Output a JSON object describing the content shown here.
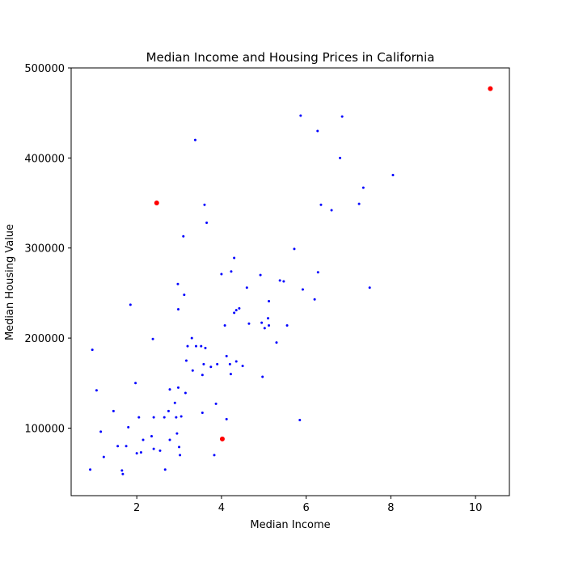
{
  "chart_data": {
    "type": "scatter",
    "title": "Median Income and Housing Prices in California",
    "xlabel": "Median Income",
    "ylabel": "Median Housing Value",
    "xlim": [
      0.45,
      10.8
    ],
    "ylim": [
      25000,
      500000
    ],
    "x_ticks": [
      2,
      4,
      6,
      8,
      10
    ],
    "y_ticks": [
      100000,
      200000,
      300000,
      400000,
      500000
    ],
    "grid": false,
    "series": [
      {
        "color": "#0000ff",
        "marker_size": "small",
        "points": [
          [
            0.9,
            54000
          ],
          [
            0.95,
            187000
          ],
          [
            1.05,
            142000
          ],
          [
            1.15,
            96000
          ],
          [
            1.22,
            68000
          ],
          [
            1.45,
            119000
          ],
          [
            1.55,
            80000
          ],
          [
            1.65,
            53000
          ],
          [
            1.67,
            49000
          ],
          [
            1.75,
            80000
          ],
          [
            1.8,
            101000
          ],
          [
            1.85,
            237000
          ],
          [
            1.97,
            150000
          ],
          [
            2.0,
            72000
          ],
          [
            2.05,
            112000
          ],
          [
            2.1,
            73000
          ],
          [
            2.15,
            87000
          ],
          [
            2.35,
            91000
          ],
          [
            2.38,
            199000
          ],
          [
            2.4,
            112000
          ],
          [
            2.4,
            77000
          ],
          [
            2.55,
            75000
          ],
          [
            2.65,
            112000
          ],
          [
            2.67,
            54000
          ],
          [
            2.75,
            119000
          ],
          [
            2.78,
            143000
          ],
          [
            2.78,
            87000
          ],
          [
            2.9,
            128000
          ],
          [
            2.93,
            112000
          ],
          [
            2.95,
            94000
          ],
          [
            2.97,
            260000
          ],
          [
            2.98,
            232000
          ],
          [
            2.98,
            145000
          ],
          [
            3.0,
            79000
          ],
          [
            3.02,
            70000
          ],
          [
            3.05,
            113000
          ],
          [
            3.1,
            313000
          ],
          [
            3.12,
            248000
          ],
          [
            3.15,
            139000
          ],
          [
            3.17,
            175000
          ],
          [
            3.2,
            191000
          ],
          [
            3.3,
            200000
          ],
          [
            3.32,
            164000
          ],
          [
            3.38,
            420000
          ],
          [
            3.4,
            191000
          ],
          [
            3.52,
            191000
          ],
          [
            3.55,
            159000
          ],
          [
            3.55,
            117000
          ],
          [
            3.58,
            171000
          ],
          [
            3.6,
            348000
          ],
          [
            3.62,
            189000
          ],
          [
            3.65,
            328000
          ],
          [
            3.75,
            168000
          ],
          [
            3.83,
            70000
          ],
          [
            3.87,
            127000
          ],
          [
            3.9,
            171000
          ],
          [
            4.0,
            271000
          ],
          [
            4.08,
            214000
          ],
          [
            4.12,
            110000
          ],
          [
            4.12,
            180000
          ],
          [
            4.2,
            171000
          ],
          [
            4.22,
            160000
          ],
          [
            4.23,
            274000
          ],
          [
            4.3,
            289000
          ],
          [
            4.3,
            228000
          ],
          [
            4.35,
            231000
          ],
          [
            4.35,
            174000
          ],
          [
            4.42,
            233000
          ],
          [
            4.5,
            169000
          ],
          [
            4.6,
            256000
          ],
          [
            4.65,
            216000
          ],
          [
            4.92,
            270000
          ],
          [
            4.95,
            217000
          ],
          [
            4.97,
            157000
          ],
          [
            5.02,
            211000
          ],
          [
            5.1,
            222000
          ],
          [
            5.12,
            214000
          ],
          [
            5.12,
            241000
          ],
          [
            5.3,
            195000
          ],
          [
            5.38,
            264000
          ],
          [
            5.47,
            263000
          ],
          [
            5.55,
            214000
          ],
          [
            5.72,
            299000
          ],
          [
            5.85,
            109000
          ],
          [
            5.87,
            447000
          ],
          [
            5.92,
            254000
          ],
          [
            6.2,
            243000
          ],
          [
            6.27,
            430000
          ],
          [
            6.28,
            273000
          ],
          [
            6.35,
            348000
          ],
          [
            6.6,
            342000
          ],
          [
            6.8,
            400000
          ],
          [
            6.85,
            446000
          ],
          [
            7.25,
            349000
          ],
          [
            7.35,
            367000
          ],
          [
            7.5,
            256000
          ],
          [
            8.05,
            381000
          ]
        ]
      },
      {
        "color": "#ff0000",
        "marker_size": "large",
        "points": [
          [
            2.47,
            350000
          ],
          [
            4.02,
            88000
          ],
          [
            10.35,
            477000
          ]
        ]
      }
    ]
  }
}
